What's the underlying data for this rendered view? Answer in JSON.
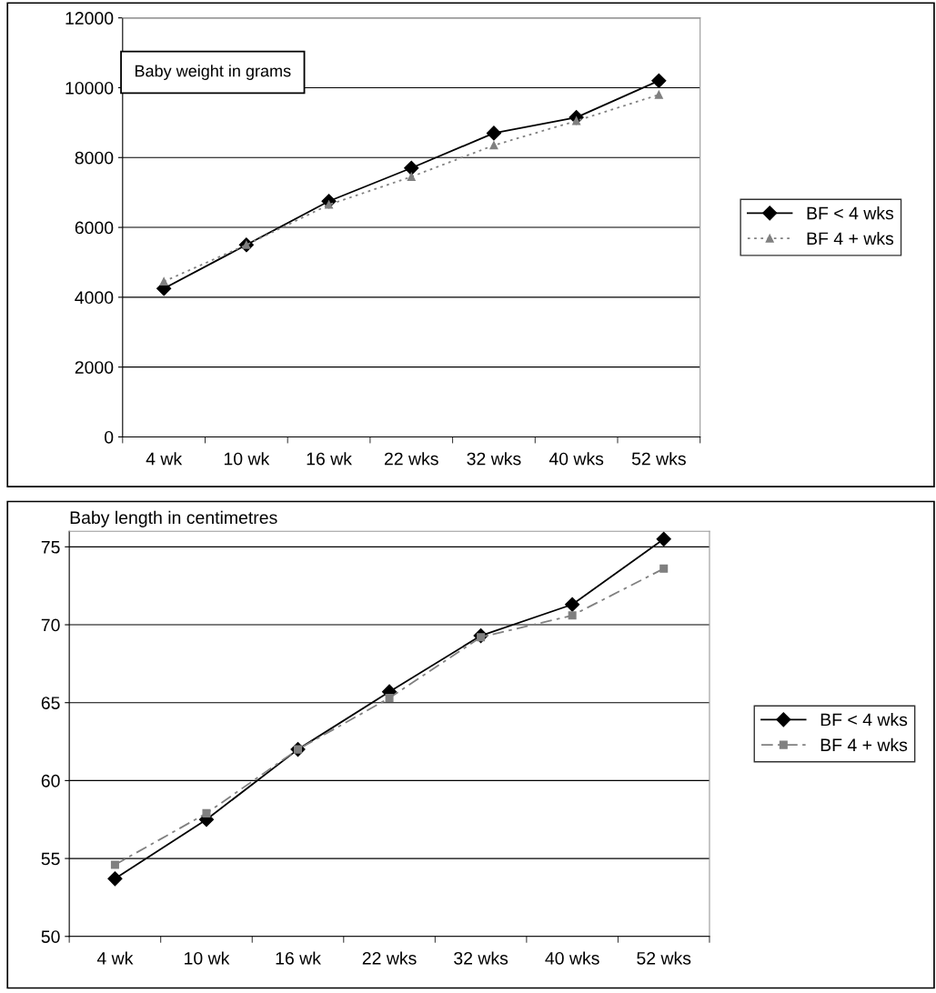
{
  "chart_data": [
    {
      "type": "line",
      "title": "Baby weight in grams",
      "categories": [
        "4 wk",
        "10 wk",
        "16 wk",
        "22 wks",
        "32 wks",
        "40 wks",
        "52 wks"
      ],
      "series": [
        {
          "name": "BF < 4 wks",
          "color": "#000000",
          "marker": "diamond",
          "line_style": "solid",
          "values": [
            4250,
            5500,
            6750,
            7700,
            8700,
            9150,
            10200
          ]
        },
        {
          "name": "BF 4 + wks",
          "color": "#808080",
          "marker": "triangle",
          "line_style": "dotted",
          "values": [
            4450,
            5500,
            6650,
            7450,
            8350,
            9050,
            9800
          ]
        }
      ],
      "ylim": [
        0,
        12000
      ],
      "yticks": [
        0,
        2000,
        4000,
        6000,
        8000,
        10000,
        12000
      ],
      "grid": "y",
      "legend": "right"
    },
    {
      "type": "line",
      "title": "Baby length in centimetres",
      "categories": [
        "4 wk",
        "10 wk",
        "16 wk",
        "22 wks",
        "32 wks",
        "40 wks",
        "52 wks"
      ],
      "series": [
        {
          "name": "BF < 4 wks",
          "color": "#000000",
          "marker": "diamond",
          "line_style": "solid",
          "values": [
            53.7,
            57.5,
            62.0,
            65.7,
            69.3,
            71.3,
            75.5
          ]
        },
        {
          "name": "BF 4 + wks",
          "color": "#808080",
          "marker": "square",
          "line_style": "dashed",
          "values": [
            54.6,
            57.9,
            62.0,
            65.3,
            69.2,
            70.6,
            73.6
          ]
        }
      ],
      "ylim": [
        50,
        76
      ],
      "yticks": [
        50,
        55,
        60,
        65,
        70,
        75
      ],
      "grid": "y",
      "legend": "right"
    }
  ]
}
